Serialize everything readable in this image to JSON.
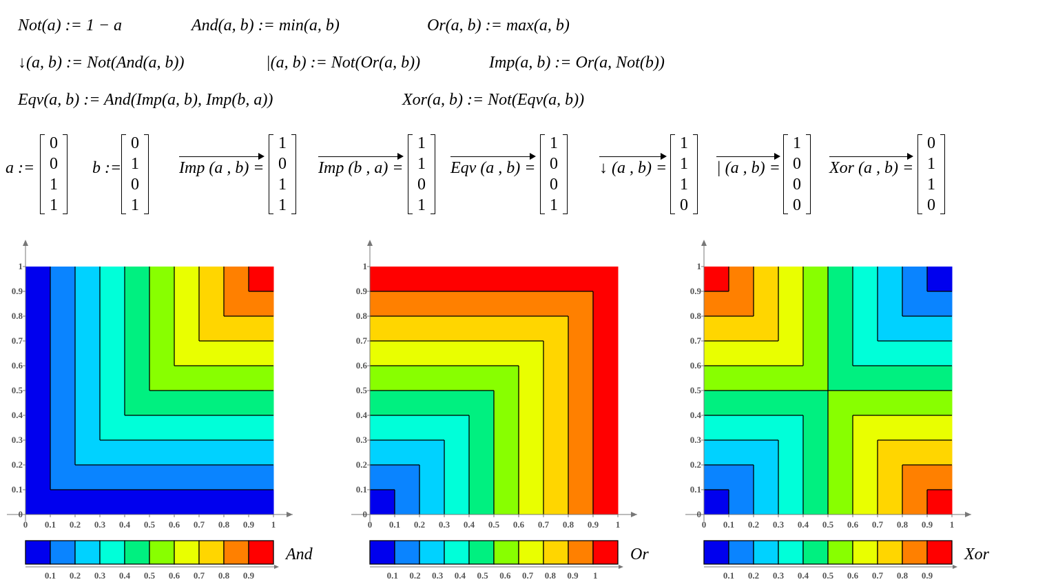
{
  "definitions": {
    "not": "Not(a) := 1 − a",
    "and": "And(a, b) := min(a, b)",
    "or": "Or(a, b) := max(a, b)",
    "nor": "↓(a, b) := Not(And(a, b))",
    "nand": "|(a, b) := Not(Or(a, b))",
    "imp": "Imp(a, b) := Or(a, Not(b))",
    "eqv": "Eqv(a, b) := And(Imp(a, b), Imp(b, a))",
    "xor": "Xor(a, b) := Not(Eqv(a, b))"
  },
  "vectors": [
    {
      "label": "a :=",
      "arrow": false,
      "values": [
        "0",
        "0",
        "1",
        "1"
      ]
    },
    {
      "label": "b :=",
      "arrow": false,
      "values": [
        "0",
        "1",
        "0",
        "1"
      ]
    },
    {
      "label": "Imp (a , b) =",
      "arrow": true,
      "values": [
        "1",
        "0",
        "1",
        "1"
      ]
    },
    {
      "label": "Imp (b , a) =",
      "arrow": true,
      "values": [
        "1",
        "1",
        "0",
        "1"
      ]
    },
    {
      "label": "Eqv (a , b) =",
      "arrow": true,
      "values": [
        "1",
        "0",
        "0",
        "1"
      ]
    },
    {
      "label": "↓ (a , b) =",
      "arrow": true,
      "values": [
        "1",
        "1",
        "1",
        "0"
      ]
    },
    {
      "label": "| (a , b) =",
      "arrow": true,
      "values": [
        "1",
        "0",
        "0",
        "0"
      ]
    },
    {
      "label": "Xor (a , b) =",
      "arrow": true,
      "values": [
        "0",
        "1",
        "1",
        "0"
      ]
    }
  ],
  "colors": [
    "#0000ee",
    "#0a84ff",
    "#00d2ff",
    "#00ffd9",
    "#00f080",
    "#88ff00",
    "#e9ff00",
    "#ffd600",
    "#ff8000",
    "#ff0000"
  ],
  "chart_data": [
    {
      "type": "heatmap",
      "legend_title": "And",
      "function": "min(a,b)",
      "x_ticks": [
        "0",
        "0.1",
        "0.2",
        "0.3",
        "0.4",
        "0.5",
        "0.6",
        "0.7",
        "0.8",
        "0.9",
        "1"
      ],
      "y_ticks": [
        "0",
        "0.1",
        "0.2",
        "0.3",
        "0.4",
        "0.5",
        "0.6",
        "0.7",
        "0.8",
        "0.9",
        "1"
      ],
      "xlim": [
        0,
        1
      ],
      "ylim": [
        0,
        1
      ],
      "levels": [
        0,
        0.1,
        0.2,
        0.3,
        0.4,
        0.5,
        0.6,
        0.7,
        0.8,
        0.9,
        1
      ],
      "colorbar_ticks": [
        "0.1",
        "0.2",
        "0.3",
        "0.4",
        "0.5",
        "0.6",
        "0.7",
        "0.8",
        "0.9"
      ]
    },
    {
      "type": "heatmap",
      "legend_title": "Or",
      "function": "max(a,b)",
      "x_ticks": [
        "0",
        "0.1",
        "0.2",
        "0.3",
        "0.4",
        "0.5",
        "0.6",
        "0.7",
        "0.8",
        "0.9",
        "1"
      ],
      "y_ticks": [
        "0",
        "0.1",
        "0.2",
        "0.3",
        "0.4",
        "0.5",
        "0.6",
        "0.7",
        "0.8",
        "0.9",
        "1"
      ],
      "xlim": [
        0,
        1
      ],
      "ylim": [
        0,
        1
      ],
      "levels": [
        0,
        0.1,
        0.2,
        0.3,
        0.4,
        0.5,
        0.6,
        0.7,
        0.8,
        0.9,
        1
      ],
      "colorbar_ticks": [
        "0.1",
        "0.2",
        "0.3",
        "0.4",
        "0.5",
        "0.6",
        "0.7",
        "0.8",
        "0.9",
        "1"
      ]
    },
    {
      "type": "heatmap",
      "legend_title": "Xor",
      "function": "1 - min(max(a,1-b), max(b,1-a))",
      "x_ticks": [
        "0",
        "0.1",
        "0.2",
        "0.3",
        "0.4",
        "0.5",
        "0.6",
        "0.7",
        "0.8",
        "0.9",
        "1"
      ],
      "y_ticks": [
        "0",
        "0.1",
        "0.2",
        "0.3",
        "0.4",
        "0.5",
        "0.6",
        "0.7",
        "0.8",
        "0.9",
        "1"
      ],
      "xlim": [
        0,
        1
      ],
      "ylim": [
        0,
        1
      ],
      "levels": [
        0,
        0.1,
        0.2,
        0.3,
        0.4,
        0.5,
        0.6,
        0.7,
        0.8,
        0.9,
        1
      ],
      "colorbar_ticks": [
        "0.1",
        "0.2",
        "0.3",
        "0.4",
        "0.5",
        "0.6",
        "0.7",
        "0.8",
        "0.9"
      ]
    }
  ]
}
